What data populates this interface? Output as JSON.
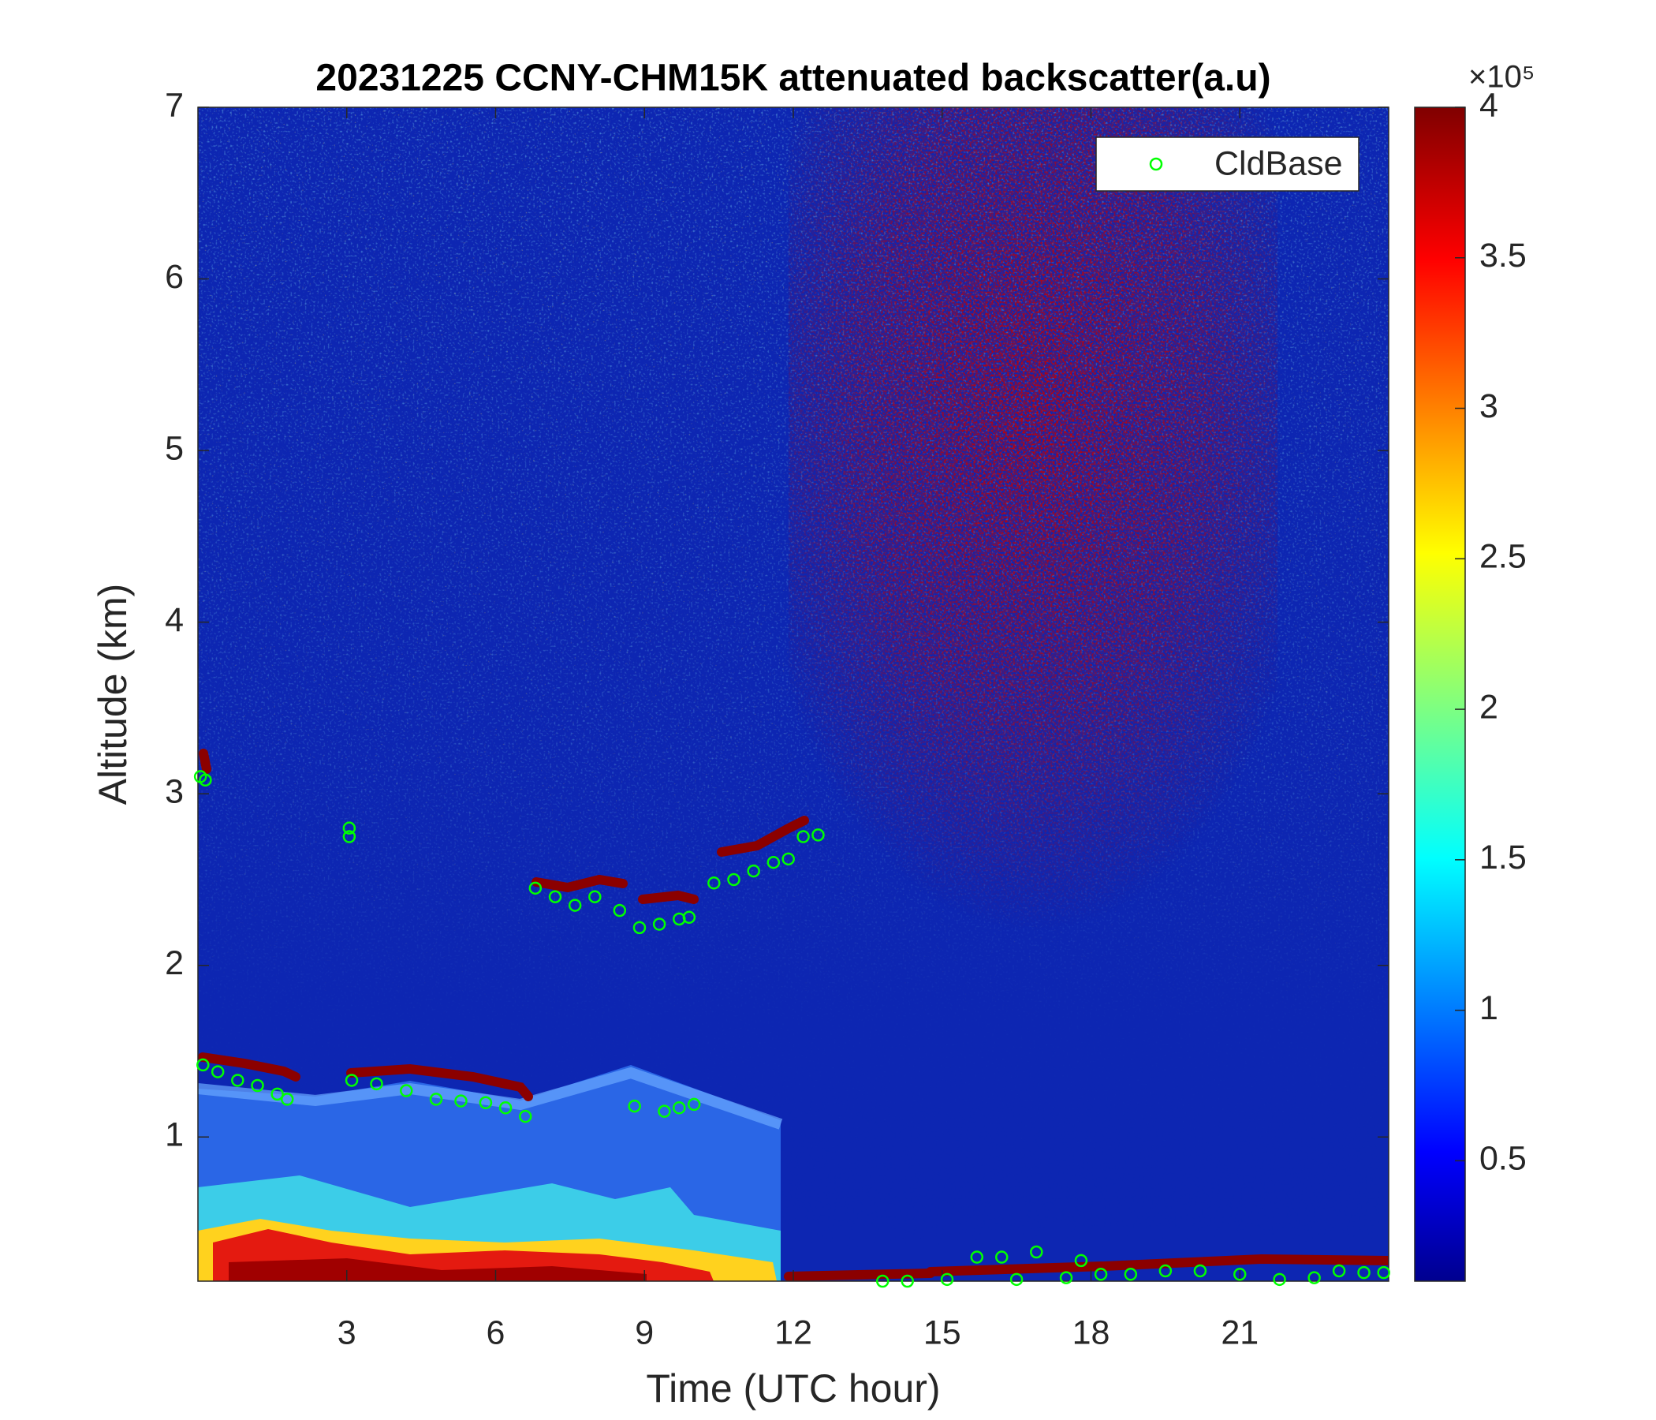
{
  "chart_data": {
    "type": "scatter",
    "title": "20231225 CCNY-CHM15K attenuated backscatter(a.u)",
    "xlabel": "Time (UTC hour)",
    "ylabel": "Altitude (km)",
    "x": [
      0.05,
      0.15,
      3.05,
      3.05,
      0.1,
      0.4,
      0.8,
      1.2,
      1.6,
      1.8,
      3.1,
      3.6,
      4.2,
      4.8,
      5.3,
      5.8,
      6.2,
      6.6,
      8.8,
      9.4,
      9.7,
      10,
      6.8,
      7.2,
      7.6,
      8,
      8.5,
      8.9,
      9.3,
      9.7,
      9.9,
      10.4,
      10.8,
      11.2,
      11.6,
      11.9,
      12.2,
      12.5,
      13.8,
      14.3,
      15.1,
      15.7,
      16.2,
      16.5,
      16.9,
      17.5,
      17.8,
      18.2,
      18.8,
      19.5,
      20.2,
      21,
      21.8,
      22.5,
      23,
      23.5,
      23.9
    ],
    "series": [
      {
        "name": "CldBase",
        "color": "#00ff00",
        "values": [
          3.1,
          3.08,
          2.8,
          2.75,
          1.42,
          1.38,
          1.33,
          1.3,
          1.25,
          1.22,
          1.33,
          1.31,
          1.27,
          1.22,
          1.21,
          1.2,
          1.17,
          1.12,
          1.18,
          1.15,
          1.17,
          1.19,
          2.45,
          2.4,
          2.35,
          2.4,
          2.32,
          2.22,
          2.24,
          2.27,
          2.28,
          2.48,
          2.5,
          2.55,
          2.6,
          2.62,
          2.75,
          2.76,
          0.16,
          0.16,
          0.17,
          0.3,
          0.3,
          0.17,
          0.33,
          0.18,
          0.28,
          0.2,
          0.2,
          0.22,
          0.22,
          0.2,
          0.17,
          0.18,
          0.22,
          0.21,
          0.21
        ]
      }
    ],
    "xlim": [
      0,
      24
    ],
    "ylim": [
      0.16,
      7
    ],
    "xticks": [
      3,
      6,
      9,
      12,
      15,
      18,
      21
    ],
    "yticks": [
      1,
      2,
      3,
      4,
      5,
      6,
      7
    ],
    "legend": "upper right",
    "colorbar": {
      "colormap": "jet",
      "clim": [
        0.1,
        4
      ],
      "ticks": [
        0.5,
        1,
        1.5,
        2,
        2.5,
        3,
        3.5,
        4
      ],
      "scale_label": "×10⁵"
    }
  }
}
